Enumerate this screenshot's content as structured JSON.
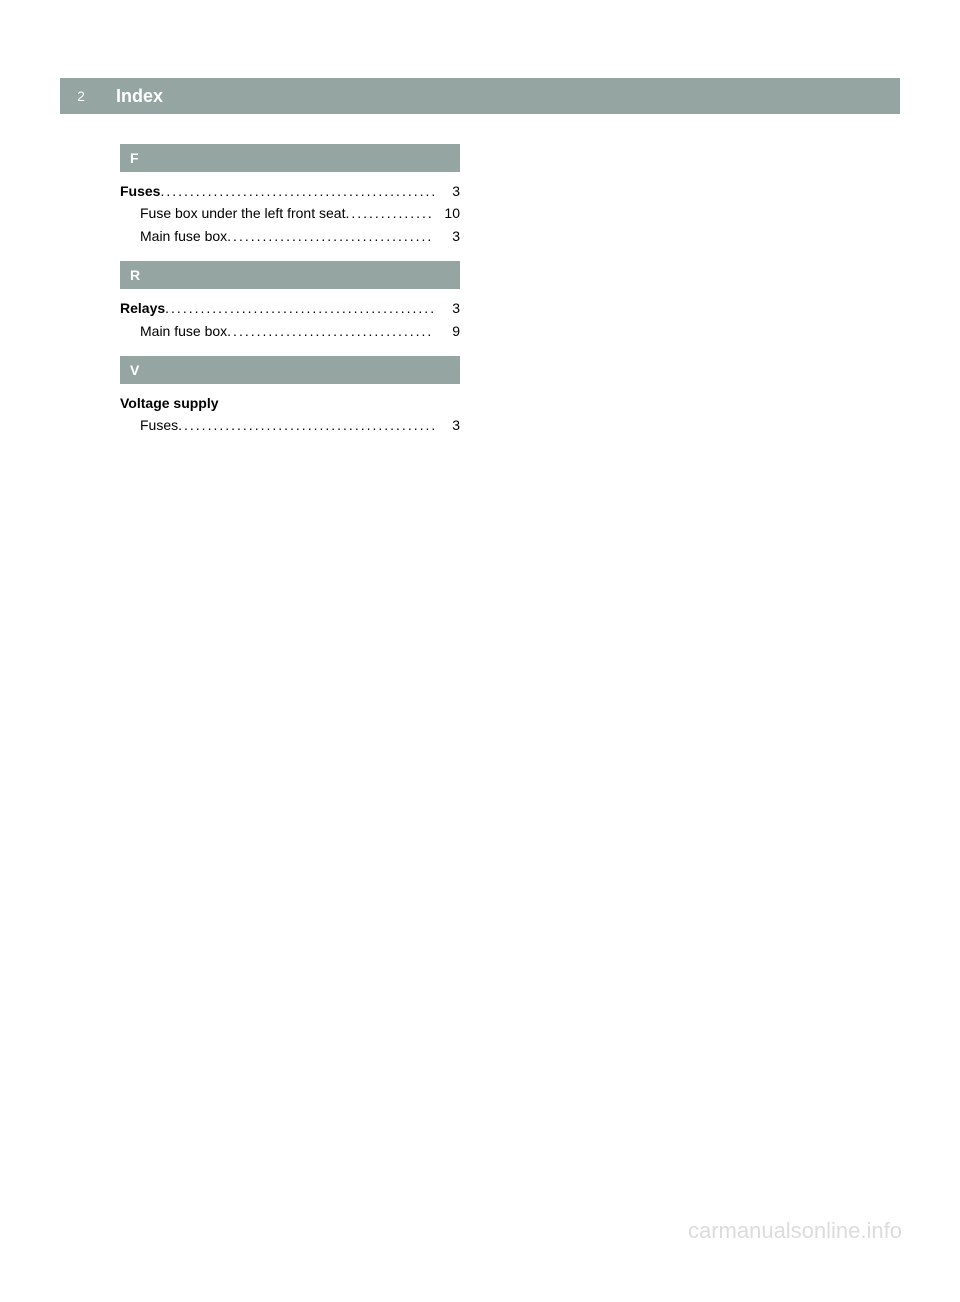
{
  "header": {
    "page_number": "2",
    "title": "Index"
  },
  "colors": {
    "header_bg": "#95a5a2",
    "header_text": "#ffffff",
    "body_text": "#000000",
    "watermark": "#dcdcdc",
    "page_bg": "#ffffff"
  },
  "typography": {
    "title_fontsize": 18,
    "entry_fontsize": 14,
    "letter_fontsize": 14,
    "watermark_fontsize": 22
  },
  "sections": [
    {
      "letter": "F",
      "entries": [
        {
          "label_bold": "Fuses",
          "label_rest": "",
          "page": "3",
          "indent": false
        },
        {
          "label_bold": "",
          "label_rest": "Fuse box under the left front seat",
          "page": "10",
          "indent": true
        },
        {
          "label_bold": "",
          "label_rest": "Main fuse box",
          "page": "3",
          "indent": true
        }
      ]
    },
    {
      "letter": "R",
      "entries": [
        {
          "label_bold": "Relays",
          "label_rest": "",
          "page": "3",
          "indent": false
        },
        {
          "label_bold": "",
          "label_rest": "Main fuse box",
          "page": "9",
          "indent": true
        }
      ]
    },
    {
      "letter": "V",
      "entries": [
        {
          "label_bold": "Voltage supply",
          "label_rest": "",
          "page": "",
          "indent": false
        },
        {
          "label_bold": "",
          "label_rest": "Fuses",
          "page": "3",
          "indent": true
        }
      ]
    }
  ],
  "watermark": "carmanualsonline.info"
}
